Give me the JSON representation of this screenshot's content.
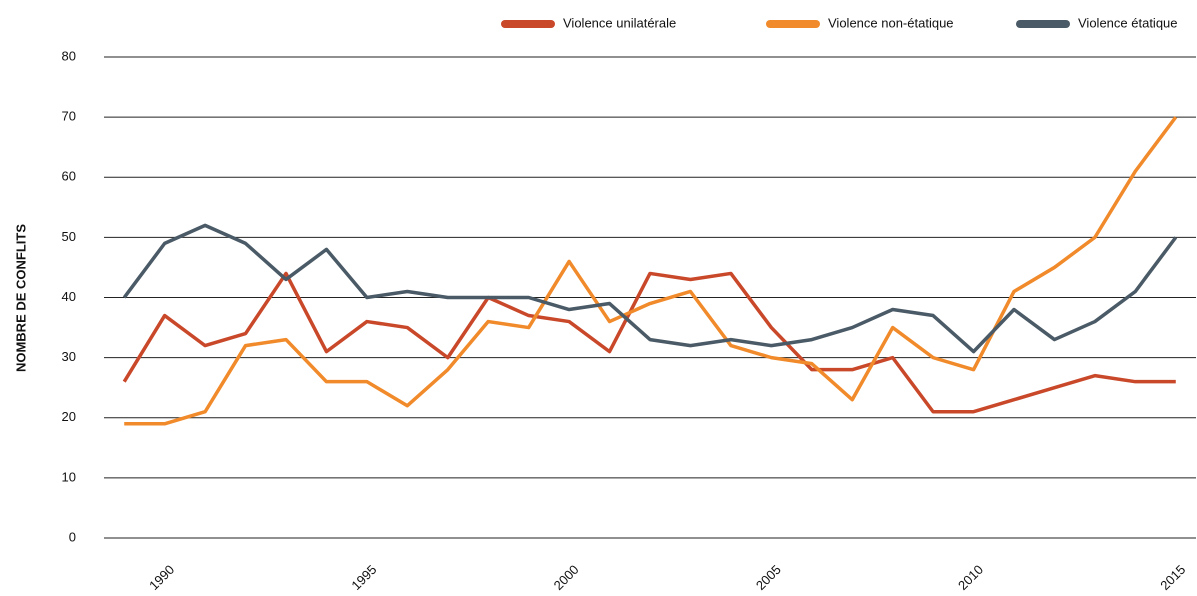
{
  "chart_data": {
    "type": "line",
    "y_label": "NOMBRE DE CONFLITS",
    "x": [
      1989,
      1990,
      1991,
      1992,
      1993,
      1994,
      1995,
      1996,
      1997,
      1998,
      1999,
      2000,
      2001,
      2002,
      2003,
      2004,
      2005,
      2006,
      2007,
      2008,
      2009,
      2010,
      2011,
      2012,
      2013,
      2014,
      2015
    ],
    "series": [
      {
        "name": "Violence unilatérale",
        "color": "#c9482a",
        "values": [
          26,
          37,
          32,
          34,
          44,
          31,
          36,
          35,
          30,
          40,
          37,
          36,
          31,
          44,
          43,
          44,
          35,
          28,
          28,
          30,
          21,
          21,
          23,
          25,
          27,
          26,
          26
        ]
      },
      {
        "name": "Violence non-étatique",
        "color": "#f18a2a",
        "values": [
          19,
          19,
          21,
          32,
          33,
          26,
          26,
          22,
          28,
          36,
          35,
          46,
          36,
          39,
          41,
          32,
          30,
          29,
          23,
          35,
          30,
          28,
          41,
          45,
          50,
          61,
          70
        ]
      },
      {
        "name": "Violence étatique",
        "color": "#4a5a66",
        "values": [
          40,
          49,
          52,
          49,
          43,
          48,
          40,
          41,
          40,
          40,
          40,
          38,
          39,
          33,
          32,
          33,
          32,
          33,
          35,
          38,
          37,
          31,
          38,
          33,
          36,
          41,
          50
        ]
      }
    ],
    "xlim": [
      1988.5,
      2015.5
    ],
    "xticks": [
      1990,
      1995,
      2000,
      2005,
      2010,
      2015
    ],
    "ylim": [
      0,
      80
    ],
    "yticks": [
      0,
      10,
      20,
      30,
      40,
      50,
      60,
      70,
      80
    ],
    "grid": true,
    "legend": "top-right"
  }
}
